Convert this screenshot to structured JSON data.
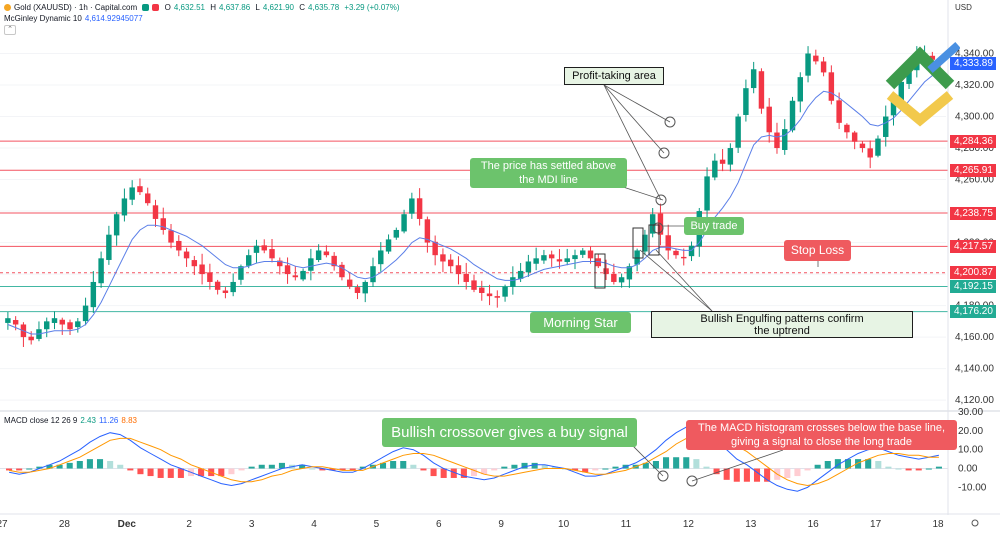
{
  "header": {
    "symbol": "Gold (XAUUSD) · 1h · Capital.com",
    "open_label": "O",
    "open": "4,632.51",
    "high_label": "H",
    "high": "4,637.86",
    "low_label": "L",
    "low": "4,621.90",
    "close_label": "C",
    "close": "4,635.78",
    "change": "+3.29 (+0.07%)",
    "indicator_name": "McGinley Dynamic 10",
    "indicator_value": "4,614.92945077",
    "macd_name": "MACD close 12 26 9",
    "macd_v1": "2.43",
    "macd_v2": "11.26",
    "macd_v3": "8.83"
  },
  "colors": {
    "up": "#089981",
    "down": "#f23645",
    "ma": "#5b7fe8",
    "signal": "#ff9800",
    "macd": "#2962ff"
  },
  "currency": "USD",
  "chart_data": [
    {
      "type": "candlestick",
      "title": "Gold (XAUUSD) · 1h",
      "ylabel": "USD",
      "ylim": [
        4115,
        4360
      ],
      "ytick_labels": [
        "4,340.00",
        "4,320.00",
        "4,300.00",
        "4,280.00",
        "4,260.00",
        "4,240.00",
        "4,220.00",
        "4,200.00",
        "4,180.00",
        "4,160.00",
        "4,140.00",
        "4,120.00"
      ],
      "ytick_values": [
        4340,
        4320,
        4300,
        4280,
        4260,
        4240,
        4220,
        4200,
        4180,
        4160,
        4140,
        4120
      ],
      "x_tick_labels": [
        "27",
        "28",
        "Dec",
        "2",
        "3",
        "4",
        "5",
        "6",
        "9",
        "10",
        "11",
        "12",
        "13",
        "16",
        "17",
        "18"
      ],
      "price_levels": [
        {
          "label": "4,333.89",
          "value": 4333.89,
          "color": "#2962ff",
          "style": "current"
        },
        {
          "label": "4,284.36",
          "value": 4284.36,
          "color": "#f23645",
          "style": "solid"
        },
        {
          "label": "4,265.91",
          "value": 4265.91,
          "color": "#f23645",
          "style": "solid"
        },
        {
          "label": "4,238.75",
          "value": 4238.75,
          "color": "#f23645",
          "style": "solid"
        },
        {
          "label": "4,217.57",
          "value": 4217.57,
          "color": "#f23645",
          "style": "solid"
        },
        {
          "label": "4,200.87",
          "value": 4200.87,
          "color": "#f23645",
          "style": "dashed"
        },
        {
          "label": "4,192.15",
          "value": 4192.15,
          "color": "#22ab94",
          "style": "solid"
        },
        {
          "label": "4,176.20",
          "value": 4176.2,
          "color": "#22ab94",
          "style": "solid"
        }
      ],
      "series": [
        {
          "name": "XAUUSD close (approx.)",
          "values": [
            4172,
            4168,
            4160,
            4158,
            4165,
            4170,
            4172,
            4168,
            4165,
            4170,
            4180,
            4195,
            4210,
            4225,
            4238,
            4248,
            4255,
            4252,
            4245,
            4235,
            4228,
            4220,
            4215,
            4210,
            4205,
            4200,
            4195,
            4190,
            4188,
            4195,
            4205,
            4212,
            4218,
            4215,
            4210,
            4205,
            4200,
            4198,
            4202,
            4210,
            4215,
            4212,
            4205,
            4198,
            4192,
            4188,
            4195,
            4205,
            4215,
            4222,
            4228,
            4238,
            4248,
            4235,
            4220,
            4212,
            4208,
            4205,
            4200,
            4195,
            4190,
            4188,
            4186,
            4185,
            4192,
            4198,
            4202,
            4208,
            4210,
            4212,
            4210,
            4208,
            4210,
            4212,
            4215,
            4210,
            4205,
            4200,
            4195,
            4198,
            4205,
            4215,
            4225,
            4238,
            4225,
            4215,
            4212,
            4210,
            4218,
            4240,
            4262,
            4272,
            4270,
            4280,
            4300,
            4318,
            4330,
            4305,
            4290,
            4280,
            4292,
            4310,
            4325,
            4340,
            4335,
            4328,
            4310,
            4296,
            4290,
            4284,
            4280,
            4274,
            4286,
            4300,
            4310,
            4322,
            4330,
            4338,
            4340,
            4336,
            4334
          ]
        },
        {
          "name": "McGinley Dynamic 10 (approx.)",
          "values": [
            4168,
            4166,
            4164,
            4162,
            4162,
            4163,
            4164,
            4164,
            4164,
            4165,
            4168,
            4174,
            4182,
            4192,
            4202,
            4212,
            4222,
            4228,
            4231,
            4231,
            4230,
            4228,
            4226,
            4224,
            4221,
            4218,
            4214,
            4210,
            4206,
            4204,
            4204,
            4205,
            4207,
            4208,
            4208,
            4208,
            4207,
            4205,
            4204,
            4205,
            4206,
            4207,
            4206,
            4204,
            4201,
            4198,
            4197,
            4198,
            4201,
            4205,
            4209,
            4214,
            4220,
            4223,
            4222,
            4220,
            4218,
            4216,
            4213,
            4210,
            4206,
            4203,
            4200,
            4197,
            4196,
            4196,
            4197,
            4199,
            4201,
            4203,
            4204,
            4205,
            4206,
            4207,
            4208,
            4208,
            4208,
            4207,
            4205,
            4204,
            4204,
            4206,
            4210,
            4215,
            4217,
            4217,
            4216,
            4215,
            4215,
            4220,
            4228,
            4236,
            4242,
            4249,
            4258,
            4270,
            4282,
            4287,
            4288,
            4287,
            4288,
            4292,
            4298,
            4306,
            4312,
            4316,
            4315,
            4312,
            4308,
            4304,
            4300,
            4295,
            4294,
            4296,
            4299,
            4304,
            4310,
            4316,
            4322,
            4326,
            4328
          ]
        }
      ]
    },
    {
      "type": "line",
      "title": "MACD close 12 26 9",
      "ylim": [
        -22,
        30
      ],
      "ytick_labels": [
        "30.00",
        "20.00",
        "10.00",
        "0.00",
        "-10.00"
      ],
      "ytick_values": [
        30,
        20,
        10,
        0,
        -10
      ],
      "series": [
        {
          "name": "MACD",
          "values": [
            -2,
            -3,
            -2,
            0,
            2,
            4,
            7,
            10,
            14,
            17,
            19,
            18,
            15,
            11,
            8,
            5,
            2,
            0,
            -2,
            -4,
            -6,
            -8,
            -9,
            -8,
            -6,
            -4,
            -2,
            0,
            1,
            2,
            1,
            0,
            -1,
            -2,
            -2,
            0,
            3,
            6,
            9,
            11,
            10,
            7,
            3,
            0,
            -2,
            -4,
            -5,
            -6,
            -5,
            -3,
            -1,
            1,
            2,
            2,
            1,
            0,
            -2,
            -4,
            -4,
            -3,
            -1,
            1,
            3,
            6,
            10,
            15,
            19,
            22,
            23,
            20,
            15,
            10,
            5,
            2,
            -2,
            -6,
            -9,
            -11,
            -12,
            -10,
            -6,
            -2,
            2,
            5,
            8,
            10,
            11,
            9,
            7,
            6,
            5,
            6,
            7
          ]
        },
        {
          "name": "Signal",
          "values": [
            -1,
            -2,
            -2,
            -1,
            0,
            2,
            4,
            6,
            9,
            12,
            15,
            16,
            16,
            14,
            12,
            10,
            7,
            5,
            2,
            0,
            -2,
            -4,
            -6,
            -7,
            -7,
            -6,
            -4,
            -3,
            -1,
            0,
            1,
            1,
            0,
            -1,
            -1,
            -1,
            1,
            3,
            5,
            7,
            8,
            8,
            7,
            5,
            3,
            1,
            -1,
            -3,
            -4,
            -4,
            -3,
            -2,
            -1,
            0,
            0,
            0,
            -1,
            -2,
            -3,
            -3,
            -2,
            -1,
            1,
            3,
            6,
            9,
            13,
            16,
            18,
            19,
            18,
            16,
            12,
            9,
            5,
            1,
            -3,
            -6,
            -8,
            -9,
            -8,
            -6,
            -3,
            0,
            3,
            5,
            7,
            8,
            8,
            7,
            7,
            6,
            6
          ]
        },
        {
          "name": "Histogram",
          "values": [
            -1,
            -1,
            0,
            1,
            2,
            2,
            3,
            4,
            5,
            5,
            4,
            2,
            -1,
            -3,
            -4,
            -5,
            -5,
            -5,
            -4,
            -4,
            -4,
            -4,
            -3,
            -1,
            1,
            2,
            2,
            3,
            2,
            2,
            0,
            -1,
            -1,
            -1,
            -1,
            1,
            2,
            3,
            4,
            4,
            2,
            -1,
            -4,
            -5,
            -5,
            -5,
            -4,
            -3,
            -1,
            1,
            2,
            3,
            3,
            2,
            1,
            0,
            -1,
            -2,
            -1,
            0,
            1,
            2,
            2,
            3,
            4,
            6,
            6,
            6,
            5,
            1,
            -3,
            -6,
            -7,
            -7,
            -7,
            -7,
            -6,
            -5,
            -4,
            -1,
            2,
            4,
            5,
            5,
            5,
            5,
            4,
            1,
            0,
            -1,
            -1,
            0,
            1
          ]
        }
      ]
    }
  ],
  "annotations": {
    "profit_taking": "Profit-taking area",
    "price_settled": "The price has settled above the MDI line",
    "buy_trade": "Buy trade",
    "stop_loss": "Stop Loss",
    "morning_star": "Morning Star",
    "bullish_engulfing": "Bullish Engulfing patterns confirm the uptrend",
    "bullish_crossover": "Bullish crossover gives a buy signal",
    "macd_histogram": "The MACD histogram crosses below the base line, giving a signal to close the long trade"
  }
}
